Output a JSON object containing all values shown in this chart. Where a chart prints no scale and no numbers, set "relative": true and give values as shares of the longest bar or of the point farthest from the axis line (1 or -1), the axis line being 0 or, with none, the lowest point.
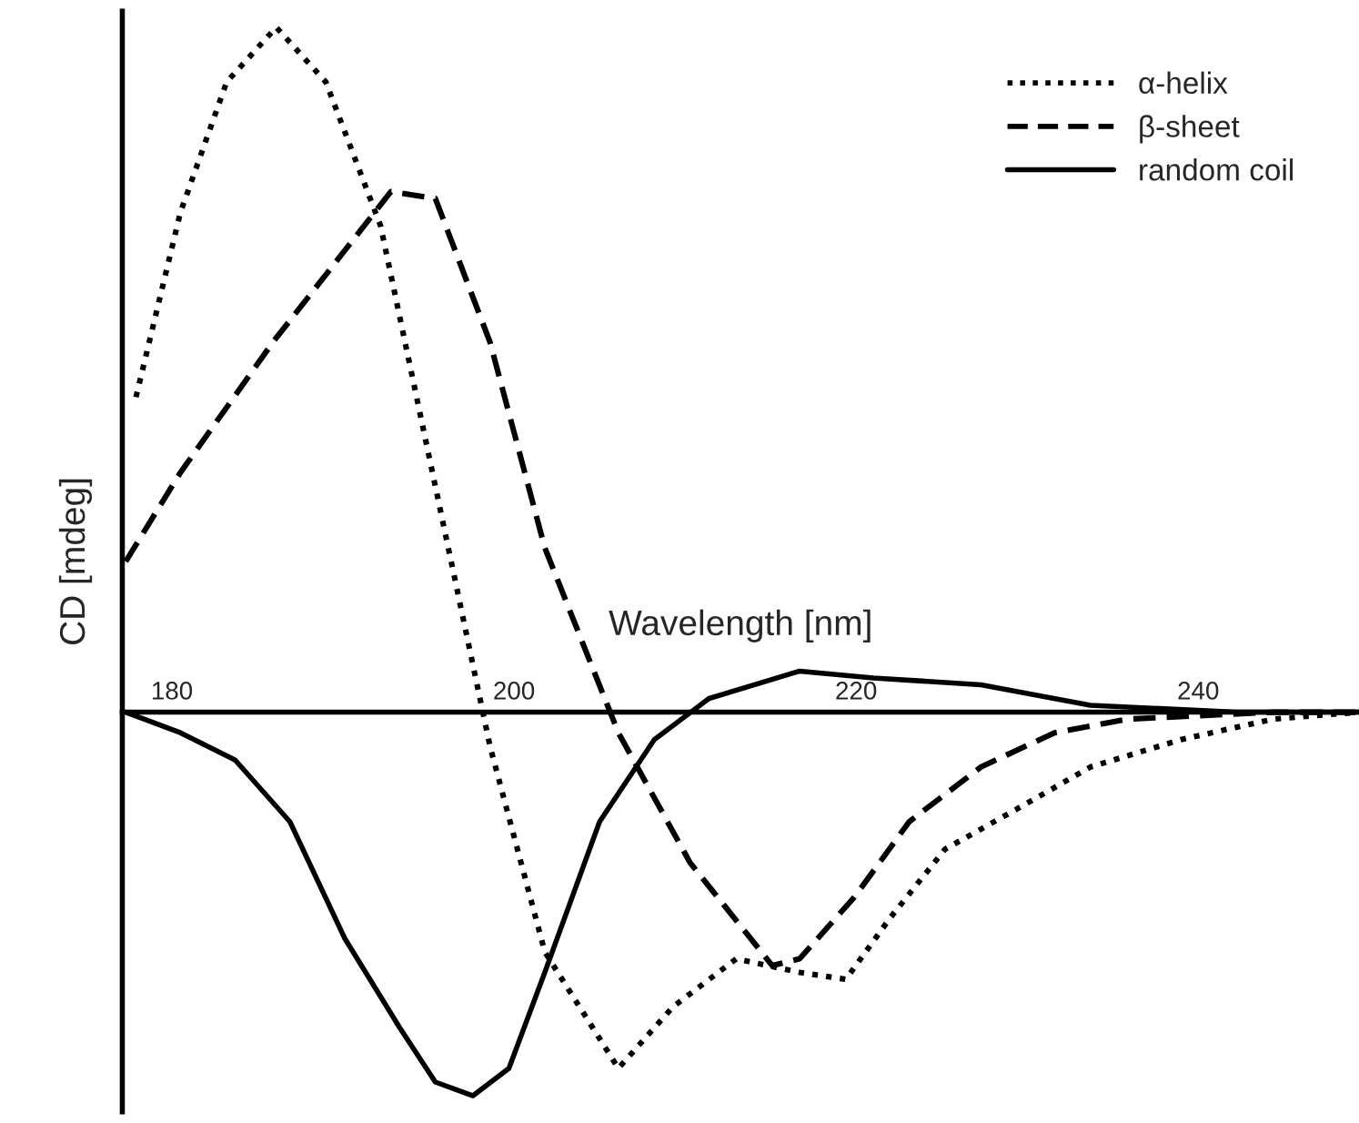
{
  "chart_data": {
    "type": "line",
    "relative": true,
    "xlabel": "Wavelength [nm]",
    "ylabel": "CD [mdeg]",
    "xlim": [
      177.1,
      249.4
    ],
    "xticks": [
      180,
      200,
      220,
      240
    ],
    "legend": "top right",
    "grid": false,
    "marker": "none",
    "series": [
      {
        "name": "α-helix",
        "color": "#000000",
        "line_style": "dotted",
        "x": [
          177.9,
          180.5,
          183.2,
          186.1,
          189.0,
          192.2,
          195.4,
          198.6,
          201.8,
          206.1,
          209.3,
          213.0,
          216.7,
          219.4,
          222.0,
          225.2,
          229.5,
          233.7,
          239.0,
          244.4,
          249.4
        ],
        "values": [
          0.46,
          0.73,
          0.92,
          1,
          0.92,
          0.71,
          0.33,
          -0.05,
          -0.35,
          -0.52,
          -0.43,
          -0.36,
          -0.38,
          -0.39,
          -0.3,
          -0.2,
          -0.14,
          -0.08,
          -0.04,
          -0.01,
          0
        ]
      },
      {
        "name": "β-sheet",
        "color": "#000000",
        "line_style": "dashed",
        "x": [
          177.3,
          180.5,
          185.9,
          192.8,
          195.4,
          198.6,
          201.8,
          206.1,
          210.3,
          215.1,
          216.7,
          219.9,
          223.1,
          227.3,
          231.6,
          235.9,
          244.4,
          249.4
        ],
        "values": [
          0.22,
          0.35,
          0.54,
          0.76,
          0.75,
          0.54,
          0.24,
          -0.03,
          -0.22,
          -0.37,
          -0.36,
          -0.27,
          -0.16,
          -0.08,
          -0.03,
          -0.01,
          0,
          0
        ]
      },
      {
        "name": "random coil",
        "color": "#000000",
        "line_style": "solid",
        "x": [
          177.3,
          180.5,
          183.7,
          186.9,
          190.1,
          193.3,
          195.4,
          197.6,
          199.7,
          201.8,
          205.0,
          208.2,
          211.4,
          216.7,
          221.0,
          227.3,
          233.7,
          242.2,
          249.4
        ],
        "values": [
          0,
          -0.03,
          -0.07,
          -0.16,
          -0.33,
          -0.46,
          -0.54,
          -0.56,
          -0.52,
          -0.38,
          -0.16,
          -0.04,
          0.02,
          0.06,
          0.05,
          0.04,
          0.01,
          0,
          0
        ]
      }
    ]
  }
}
